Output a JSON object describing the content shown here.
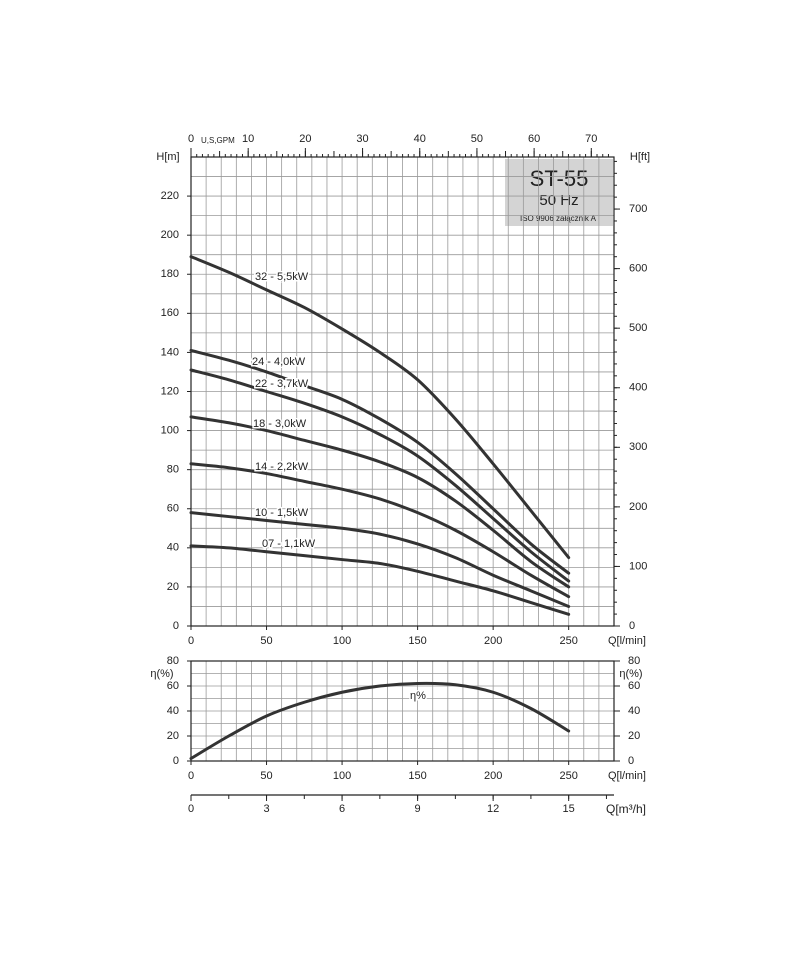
{
  "chart_data": [
    {
      "type": "line",
      "title": "ST-55",
      "subtitle": "50 Hz",
      "note": "ISO 9906 załącznik A",
      "xlabel": "Q[l/min]",
      "ylabel": "H[m]",
      "y2label": "H[ft]",
      "x2label": "U,S,GPM",
      "x": [
        0,
        25,
        50,
        75,
        100,
        125,
        150,
        175,
        200,
        225,
        250
      ],
      "xlim": [
        0,
        280
      ],
      "xticks": [
        0,
        50,
        100,
        150,
        200,
        250
      ],
      "ylim": [
        0,
        240
      ],
      "yticks": [
        0,
        20,
        40,
        60,
        80,
        100,
        120,
        140,
        160,
        180,
        200,
        220
      ],
      "y2lim": [
        0,
        787.4
      ],
      "y2ticks": [
        0,
        100,
        200,
        300,
        400,
        500,
        600,
        700
      ],
      "x2lim": [
        0,
        73.97
      ],
      "x2ticks": [
        0,
        10,
        20,
        30,
        40,
        50,
        60,
        70
      ],
      "grid": true,
      "series": [
        {
          "name": "32 - 5,5kW",
          "color": "#333333",
          "values": [
            189,
            181,
            172,
            163,
            152,
            140,
            126,
            106,
            83,
            59,
            35
          ]
        },
        {
          "name": "24 - 4,0kW",
          "color": "#333333",
          "values": [
            141,
            136,
            130,
            123,
            116,
            106,
            94,
            78,
            60,
            42,
            27
          ]
        },
        {
          "name": "22 - 3,7kW",
          "color": "#333333",
          "values": [
            131,
            126,
            120,
            114,
            107,
            98,
            87,
            72,
            55,
            38,
            23
          ]
        },
        {
          "name": "18 - 3,0kW",
          "color": "#333333",
          "values": [
            107,
            104,
            100,
            95,
            90,
            84,
            76,
            64,
            49,
            33,
            20
          ]
        },
        {
          "name": "14 - 2,2kW",
          "color": "#333333",
          "values": [
            83,
            81,
            78,
            74,
            70,
            65,
            58,
            49,
            38,
            26,
            15
          ]
        },
        {
          "name": "10 - 1,5kW",
          "color": "#333333",
          "values": [
            58,
            56,
            54,
            52,
            50,
            47,
            42,
            35,
            26,
            18,
            10
          ]
        },
        {
          "name": "07 - 1,1kW",
          "color": "#333333",
          "values": [
            41,
            40,
            38,
            36,
            34,
            32,
            28,
            23,
            18,
            12,
            6
          ]
        }
      ]
    },
    {
      "type": "line",
      "xlabel": "Q[l/min]",
      "ylabel": "η(%)",
      "y2label": "η(%)",
      "x2label": "Q[m³/h]",
      "x": [
        0,
        25,
        50,
        75,
        100,
        125,
        150,
        175,
        200,
        225,
        250
      ],
      "xlim": [
        0,
        280
      ],
      "xticks": [
        0,
        50,
        100,
        150,
        200,
        250
      ],
      "ylim": [
        0,
        80
      ],
      "yticks": [
        0,
        20,
        40,
        60,
        80
      ],
      "y2lim": [
        0,
        80
      ],
      "y2ticks": [
        0,
        20,
        40,
        60,
        80
      ],
      "x2lim": [
        0,
        16.8
      ],
      "x2ticks": [
        0,
        3,
        6,
        9,
        12,
        15
      ],
      "grid": true,
      "series": [
        {
          "name": "η%",
          "color": "#333333",
          "values": [
            2,
            20,
            36,
            47,
            55,
            60,
            62,
            61,
            55,
            42,
            24
          ]
        }
      ]
    }
  ]
}
